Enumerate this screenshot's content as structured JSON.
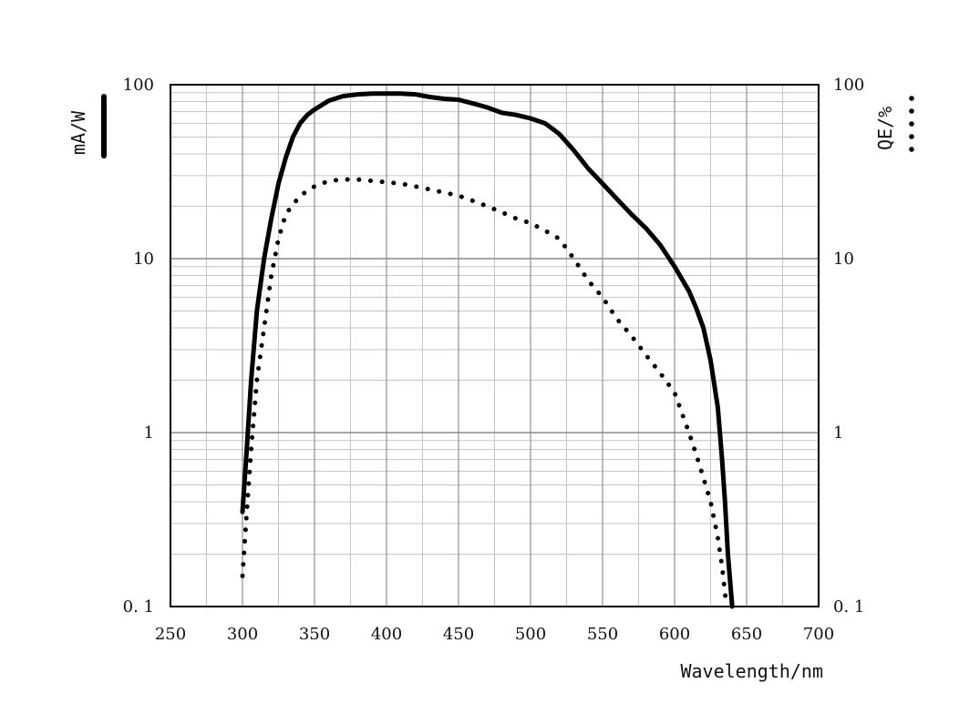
{
  "chart_data": {
    "type": "line",
    "title": "",
    "xlabel": "Wavelength/nm",
    "ylabel_left": "mA/W",
    "ylabel_right": "QE/%",
    "xlim": [
      250,
      700
    ],
    "ylim": [
      0.1,
      100
    ],
    "yscale": "log",
    "grid": true,
    "x_ticks": [
      250,
      300,
      350,
      400,
      450,
      500,
      550,
      600,
      650,
      700
    ],
    "x_tick_labels": [
      "250",
      "300",
      "350",
      "400",
      "450",
      "500",
      "550",
      "600",
      "650",
      "700"
    ],
    "y_ticks": [
      0.1,
      1,
      10,
      100
    ],
    "y_tick_labels_left": [
      "0. 1",
      "1",
      "10",
      "100"
    ],
    "y_tick_labels_right": [
      "0. 1",
      "1",
      "10",
      "100"
    ],
    "series": [
      {
        "axis": "left",
        "style": "solid",
        "color": "#000000",
        "points": [
          [
            300,
            0.35
          ],
          [
            303,
            0.8
          ],
          [
            306,
            2
          ],
          [
            310,
            5
          ],
          [
            315,
            10
          ],
          [
            320,
            17
          ],
          [
            325,
            27
          ],
          [
            330,
            38
          ],
          [
            335,
            50
          ],
          [
            340,
            60
          ],
          [
            345,
            67
          ],
          [
            350,
            72
          ],
          [
            360,
            81
          ],
          [
            370,
            86
          ],
          [
            380,
            88
          ],
          [
            390,
            89
          ],
          [
            400,
            89
          ],
          [
            410,
            89
          ],
          [
            420,
            88
          ],
          [
            430,
            85
          ],
          [
            440,
            83
          ],
          [
            450,
            82
          ],
          [
            460,
            78
          ],
          [
            470,
            74
          ],
          [
            480,
            69
          ],
          [
            490,
            67
          ],
          [
            500,
            64
          ],
          [
            510,
            60
          ],
          [
            515,
            56
          ],
          [
            520,
            52
          ],
          [
            530,
            42
          ],
          [
            540,
            33
          ],
          [
            550,
            27
          ],
          [
            560,
            22
          ],
          [
            570,
            18
          ],
          [
            580,
            15
          ],
          [
            590,
            12
          ],
          [
            600,
            9
          ],
          [
            610,
            6.5
          ],
          [
            615,
            5.2
          ],
          [
            620,
            4
          ],
          [
            625,
            2.6
          ],
          [
            630,
            1.4
          ],
          [
            633,
            0.7
          ],
          [
            635,
            0.4
          ],
          [
            637,
            0.2
          ],
          [
            640,
            0.1
          ]
        ]
      },
      {
        "axis": "right",
        "style": "dotted",
        "color": "#000000",
        "points": [
          [
            300,
            0.15
          ],
          [
            303,
            0.35
          ],
          [
            306,
            0.8
          ],
          [
            310,
            2
          ],
          [
            315,
            4
          ],
          [
            320,
            8
          ],
          [
            325,
            13
          ],
          [
            330,
            18
          ],
          [
            340,
            23
          ],
          [
            350,
            26
          ],
          [
            360,
            28
          ],
          [
            370,
            28.5
          ],
          [
            380,
            28.5
          ],
          [
            390,
            28
          ],
          [
            400,
            27.5
          ],
          [
            410,
            27
          ],
          [
            420,
            26
          ],
          [
            430,
            25
          ],
          [
            440,
            24
          ],
          [
            450,
            23
          ],
          [
            460,
            21.5
          ],
          [
            470,
            20
          ],
          [
            480,
            18.5
          ],
          [
            490,
            17
          ],
          [
            500,
            16
          ],
          [
            510,
            14.5
          ],
          [
            520,
            13
          ],
          [
            530,
            10
          ],
          [
            540,
            7.5
          ],
          [
            550,
            6
          ],
          [
            560,
            4.5
          ],
          [
            570,
            3.6
          ],
          [
            580,
            2.8
          ],
          [
            590,
            2.2
          ],
          [
            600,
            1.7
          ],
          [
            605,
            1.3
          ],
          [
            610,
            1
          ],
          [
            615,
            0.75
          ],
          [
            620,
            0.55
          ],
          [
            625,
            0.4
          ],
          [
            630,
            0.25
          ],
          [
            633,
            0.17
          ],
          [
            635,
            0.12
          ],
          [
            636,
            0.1
          ]
        ]
      }
    ]
  }
}
